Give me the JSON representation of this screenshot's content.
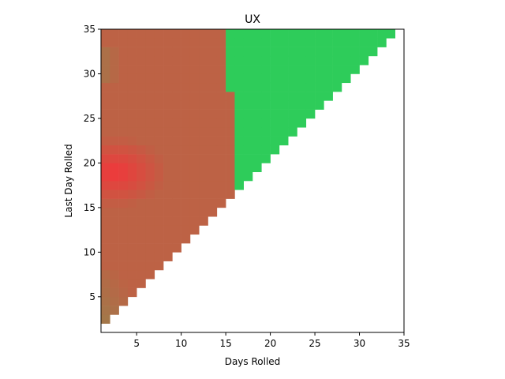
{
  "chart_data": {
    "type": "heatmap",
    "title": "UX",
    "xlabel": "Days Rolled",
    "ylabel": "Last Day Rolled",
    "xlim": [
      1,
      35
    ],
    "ylim": [
      1,
      35
    ],
    "x_ticks": [
      5,
      10,
      15,
      20,
      25,
      30,
      35
    ],
    "y_ticks": [
      5,
      10,
      15,
      20,
      25,
      30,
      35
    ],
    "grid": false,
    "cell_rule": "cells exist where x <= y - 1",
    "green_region": "y >= 28 and x >= 15, or 17 <= y <= 27 and x >= 16",
    "colors": {
      "green": "#2ecc5a",
      "red": "#f2363b",
      "olive": "#a07a4a",
      "red_mid": "#e4423e"
    }
  }
}
